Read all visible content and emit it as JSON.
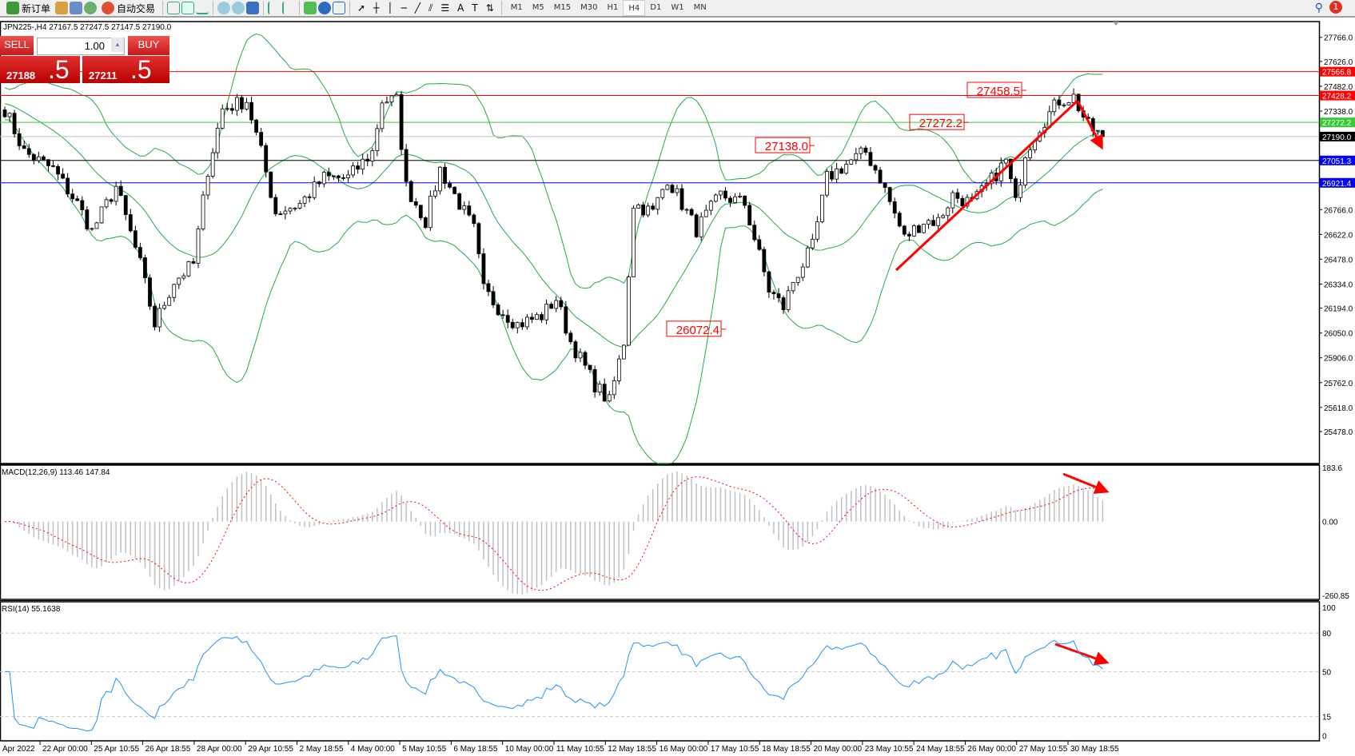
{
  "toolbar": {
    "new_order": "新订单",
    "auto_trading": "自动交易",
    "timeframes": [
      "M1",
      "M5",
      "M15",
      "M30",
      "H1",
      "H4",
      "D1",
      "W1",
      "MN"
    ],
    "selected_timeframe": "H4",
    "notification_count": "1"
  },
  "chart": {
    "header": "JPN225-,H4  27167.5 27247.5 27147.5 27190.0"
  },
  "trade_panel": {
    "sell_label": "SELL",
    "buy_label": "BUY",
    "lot": "1.00",
    "sell_price_main": "27188",
    "sell_price_big": ".5",
    "buy_price_main": "27211",
    "buy_price_big": ".5"
  },
  "price_axis": {
    "ticks": [
      "27766.0",
      "27626.0",
      "27482.0",
      "27338.0",
      "26766.0",
      "26622.0",
      "26478.0",
      "26334.0",
      "26194.0",
      "26050.0",
      "25906.0",
      "25762.0",
      "25618.0",
      "25478.0"
    ],
    "tick_values": [
      27766,
      27626,
      27482,
      27338,
      26766,
      26622,
      26478,
      26334,
      26194,
      26050,
      25906,
      25762,
      25618,
      25478
    ],
    "levels": [
      {
        "label": "27566.8",
        "value": 27566.8,
        "color": "#ff0000",
        "line": "#ff0000"
      },
      {
        "label": "27428.2",
        "value": 27428.2,
        "color": "#ff0000",
        "line": "#ff0000"
      },
      {
        "label": "27272.2",
        "value": 27272.2,
        "color": "#33cc33",
        "line": "#33cc33"
      },
      {
        "label": "27190.0",
        "value": 27190.0,
        "color": "#000000",
        "line": "#c0c0c0"
      },
      {
        "label": "27051.3",
        "value": 27051.3,
        "color": "#0000ff",
        "line": "#000000"
      },
      {
        "label": "26921.4",
        "value": 26921.4,
        "color": "#0000ff",
        "line": "#0000ff"
      }
    ]
  },
  "annotations": [
    {
      "text": "27458.5",
      "value": 27458.5
    },
    {
      "text": "27272.2",
      "value": 27272.2
    },
    {
      "text": "27138.0",
      "value": 27138.0
    },
    {
      "text": "26072.4",
      "value": 26072.4
    }
  ],
  "price_path": [
    [
      0,
      27350
    ],
    [
      4,
      27100
    ],
    [
      10,
      27000
    ],
    [
      15,
      26800
    ],
    [
      18,
      26640
    ],
    [
      23,
      26900
    ],
    [
      28,
      26450
    ],
    [
      31,
      26100
    ],
    [
      35,
      26350
    ],
    [
      39,
      26450
    ],
    [
      42,
      27000
    ],
    [
      45,
      27350
    ],
    [
      50,
      27400
    ],
    [
      53,
      27100
    ],
    [
      56,
      26750
    ],
    [
      61,
      26800
    ],
    [
      66,
      26950
    ],
    [
      71,
      26950
    ],
    [
      76,
      27100
    ],
    [
      78,
      27400
    ],
    [
      81,
      27400
    ],
    [
      83,
      26900
    ],
    [
      87,
      26700
    ],
    [
      90,
      27000
    ],
    [
      93,
      26850
    ],
    [
      97,
      26650
    ],
    [
      99,
      26300
    ],
    [
      102,
      26200
    ],
    [
      106,
      26100
    ],
    [
      111,
      26150
    ],
    [
      114,
      26250
    ],
    [
      117,
      26000
    ],
    [
      122,
      25750
    ],
    [
      125,
      25650
    ],
    [
      128,
      26000
    ],
    [
      130,
      26800
    ],
    [
      134,
      26750
    ],
    [
      137,
      26950
    ],
    [
      143,
      26650
    ],
    [
      148,
      26850
    ],
    [
      153,
      26800
    ],
    [
      155,
      26600
    ],
    [
      158,
      26300
    ],
    [
      161,
      26200
    ],
    [
      163,
      26350
    ],
    [
      167,
      26550
    ],
    [
      170,
      26950
    ],
    [
      175,
      27050
    ],
    [
      178,
      27100
    ],
    [
      181,
      26950
    ],
    [
      186,
      26600
    ],
    [
      190,
      26700
    ],
    [
      193,
      26700
    ],
    [
      196,
      26850
    ],
    [
      200,
      26800
    ],
    [
      203,
      26900
    ],
    [
      207,
      27050
    ],
    [
      209,
      26800
    ],
    [
      211,
      27100
    ],
    [
      214,
      27250
    ],
    [
      218,
      27400
    ],
    [
      221,
      27420
    ],
    [
      224,
      27250
    ],
    [
      227,
      27190
    ]
  ],
  "macd": {
    "label": "MACD(12,26,9) 113.46 147.84",
    "ticks": [
      "183.6",
      "0.00",
      "-260.85"
    ]
  },
  "rsi": {
    "label": "RSI(14) 55.1638",
    "ticks": [
      "100",
      "80",
      "50",
      "15",
      "0"
    ]
  },
  "time_axis": [
    "Apr 2022",
    "22 Apr 00:00",
    "25 Apr 10:55",
    "26 Apr 18:55",
    "28 Apr 00:00",
    "29 Apr 10:55",
    "2 May 18:55",
    "4 May 00:00",
    "5 May 10:55",
    "6 May 18:55",
    "10 May 00:00",
    "11 May 10:55",
    "12 May 18:55",
    "16 May 00:00",
    "17 May 10:55",
    "18 May 18:55",
    "20 May 00:00",
    "23 May 10:55",
    "24 May 18:55",
    "26 May 00:00",
    "27 May 10:55",
    "30 May 18:55"
  ],
  "colors": {
    "bands": "#22aa44",
    "rsi": "#1e90ff",
    "macd_hist": "#c0c0c0",
    "signal": "#ff0000",
    "arrow": "#ff0000"
  }
}
